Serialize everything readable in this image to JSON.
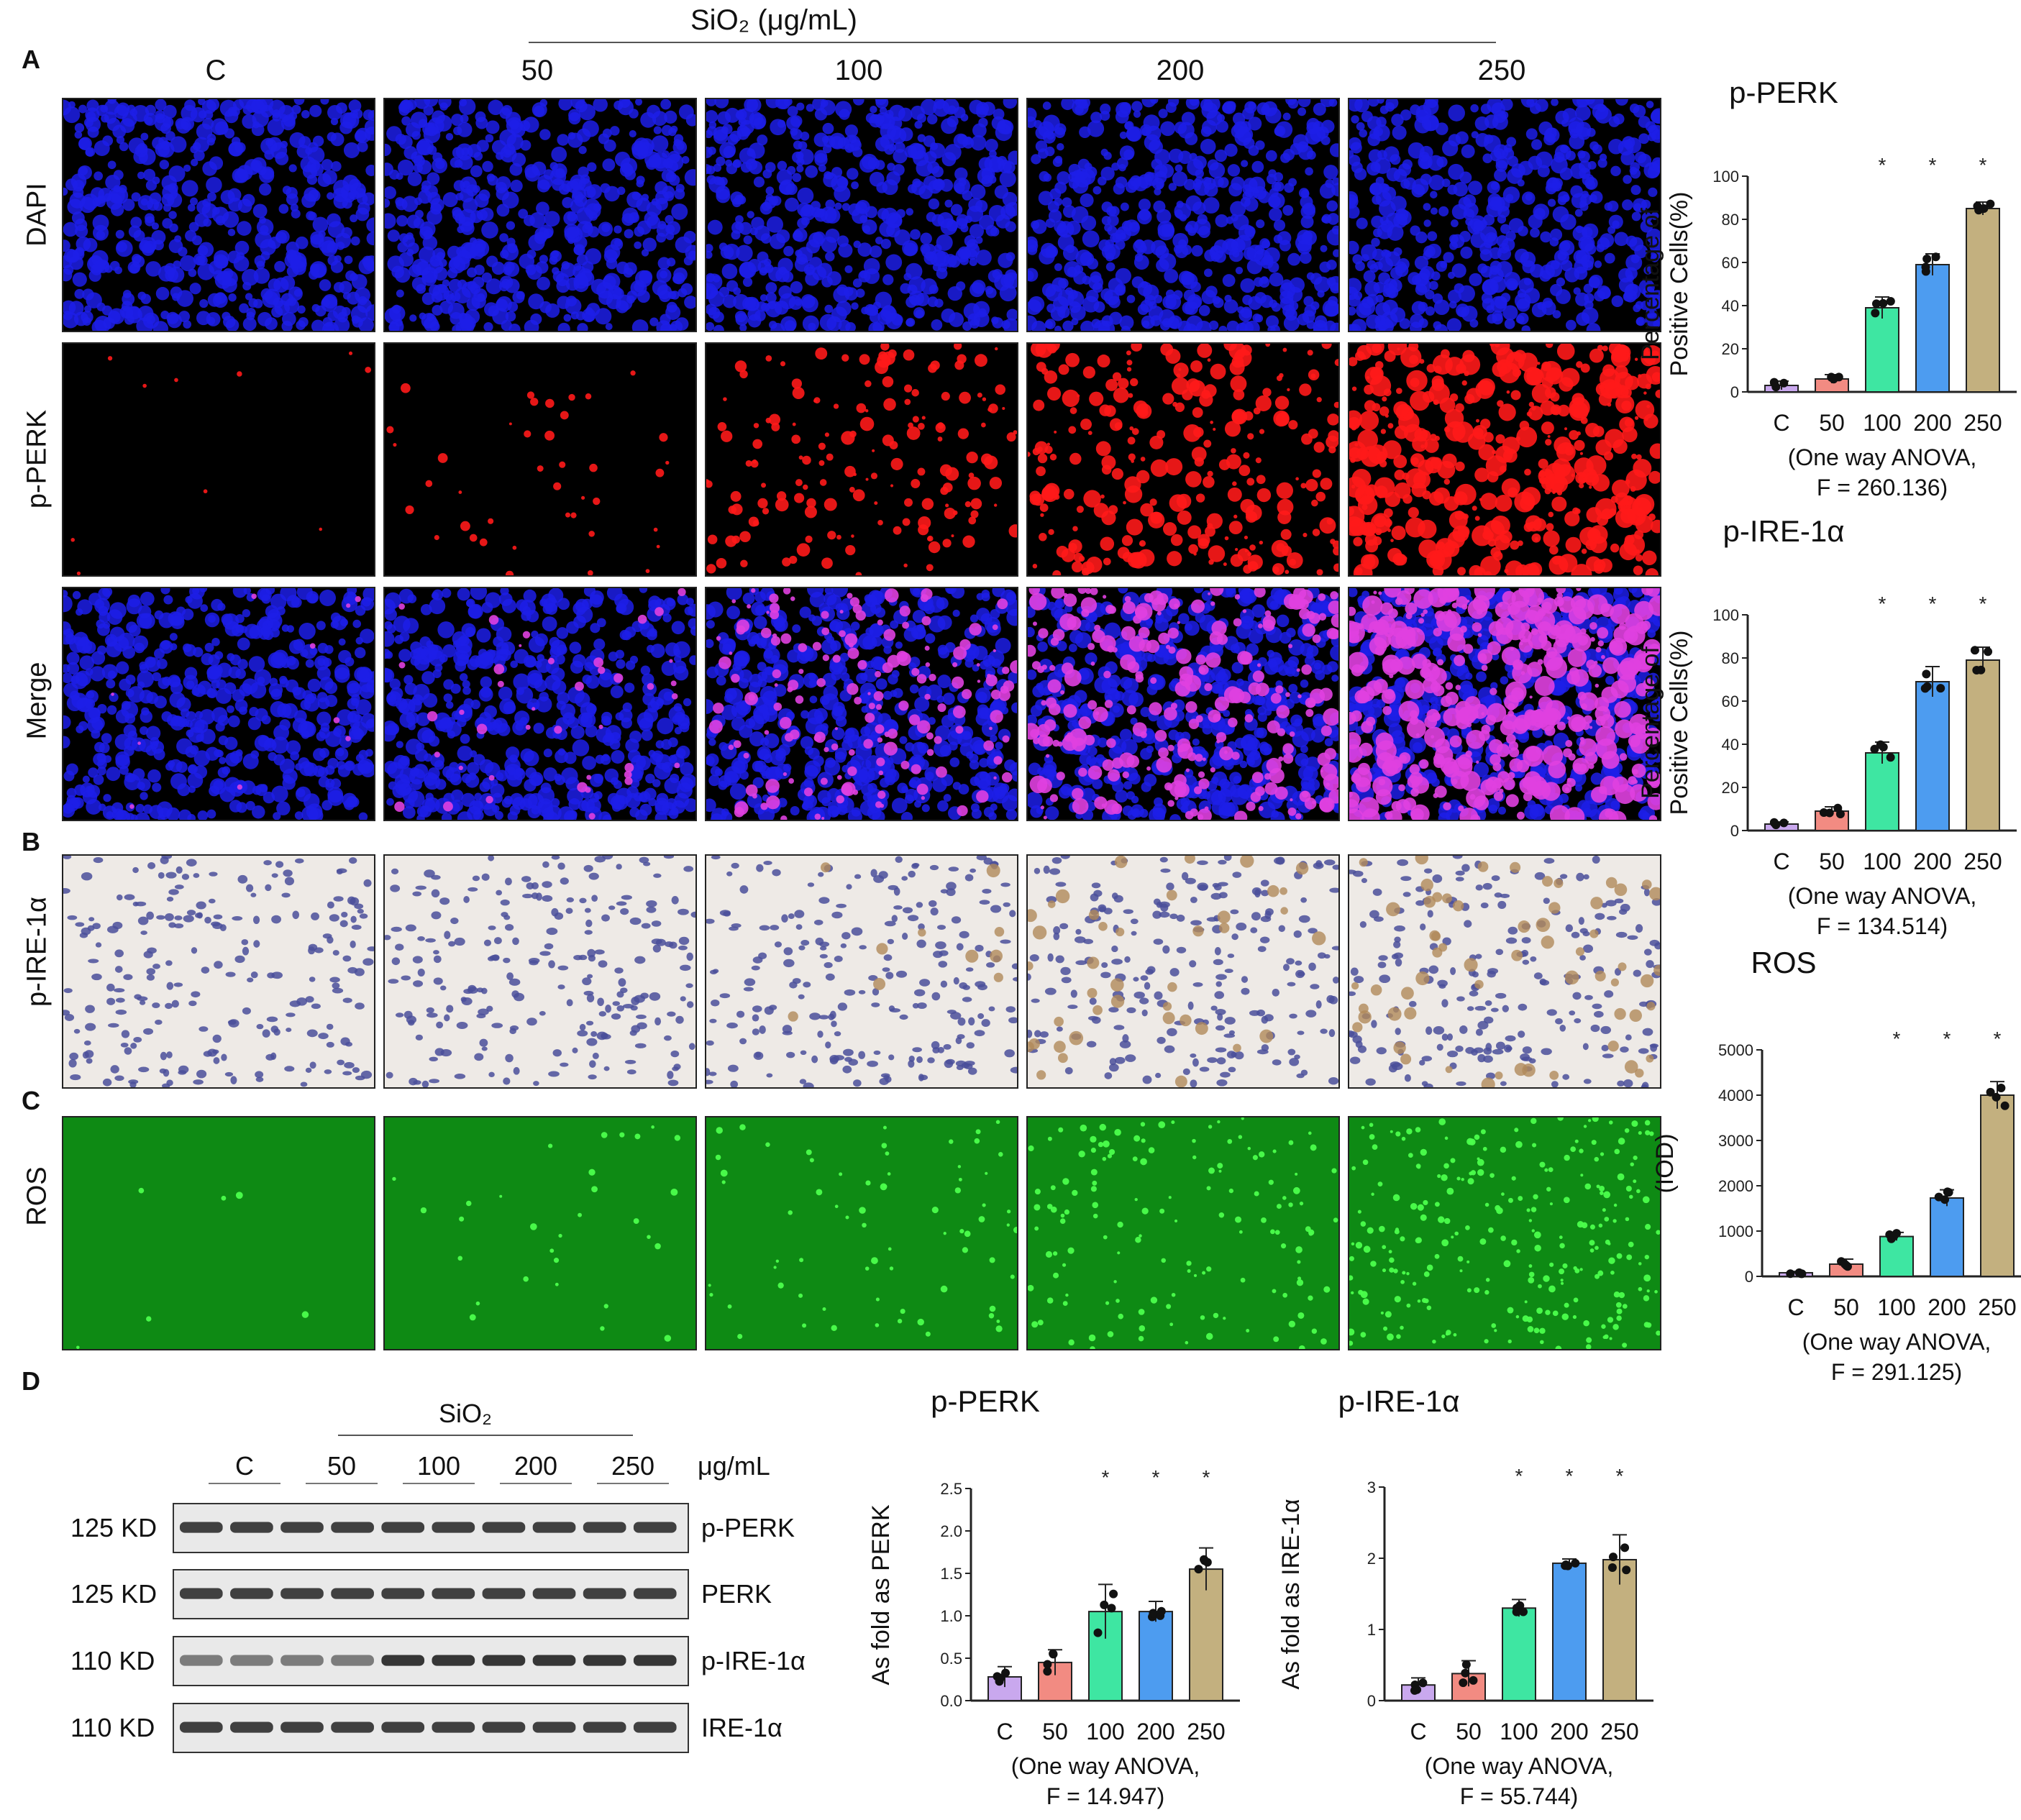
{
  "header": {
    "sio2_label": "SiO₂ (μg/mL)"
  },
  "panels": {
    "A": "A",
    "B": "B",
    "C": "C",
    "D": "D"
  },
  "columns": [
    "C",
    "50",
    "100",
    "200",
    "250"
  ],
  "rows": {
    "dapi": "DAPI",
    "pperk": "p-PERK",
    "merge": "Merge",
    "pire": "p-IRE-1α",
    "ros": "ROS"
  },
  "colors": {
    "dapi": "#1d1ee8",
    "pperk": "#ff1a1a",
    "merge": "#e040e0",
    "ros_bg": "#0e8a14",
    "ros_cell": "#4cff4c",
    "ihc_bg": "#eeeae6",
    "ihc_cell": "#4a4f9a"
  },
  "western": {
    "sio2": "SiO₂",
    "groups": [
      "C",
      "50",
      "100",
      "200",
      "250"
    ],
    "unit": "μg/mL",
    "bands": [
      {
        "kd": "125 KD",
        "name": "p-PERK"
      },
      {
        "kd": "125 KD",
        "name": "PERK"
      },
      {
        "kd": "110 KD",
        "name": "p-IRE-1α"
      },
      {
        "kd": "110 KD",
        "name": "IRE-1α"
      }
    ]
  },
  "chart_data": [
    {
      "id": "c1",
      "type": "bar",
      "title": "p-PERK",
      "ylabel_lines": [
        "Percentage of",
        "Positive Cells(%)"
      ],
      "categories": [
        "C",
        "50",
        "100",
        "200",
        "250"
      ],
      "values": [
        3,
        6,
        39,
        59,
        85
      ],
      "errors": [
        2,
        2,
        5,
        5,
        3
      ],
      "ylim": [
        0,
        100
      ],
      "yticks": [
        "0",
        "20",
        "40",
        "60",
        "80",
        "100"
      ],
      "significant": [
        "",
        "",
        "*",
        "*",
        "*"
      ],
      "note_lines": [
        "(One way ANOVA,",
        "F = 260.136)"
      ]
    },
    {
      "id": "c2",
      "type": "bar",
      "title": "p-IRE-1α",
      "ylabel_lines": [
        "Percentage of",
        "Positive Cells(%)"
      ],
      "categories": [
        "C",
        "50",
        "100",
        "200",
        "250"
      ],
      "values": [
        3,
        9,
        36,
        69,
        79
      ],
      "errors": [
        1,
        2,
        5,
        7,
        6
      ],
      "ylim": [
        0,
        100
      ],
      "yticks": [
        "0",
        "20",
        "40",
        "60",
        "80",
        "100"
      ],
      "significant": [
        "",
        "",
        "*",
        "*",
        "*"
      ],
      "note_lines": [
        "(One way ANOVA,",
        "F = 134.514)"
      ]
    },
    {
      "id": "c3",
      "type": "bar",
      "title": "ROS",
      "ylabel_lines": [
        "(IOD)"
      ],
      "categories": [
        "C",
        "50",
        "100",
        "200",
        "250"
      ],
      "values": [
        80,
        270,
        880,
        1730,
        4000
      ],
      "errors": [
        30,
        110,
        90,
        180,
        300
      ],
      "ylim": [
        0,
        5000
      ],
      "yticks": [
        "0",
        "1000",
        "2000",
        "3000",
        "4000",
        "5000"
      ],
      "significant": [
        "",
        "",
        "*",
        "*",
        "*"
      ],
      "note_lines": [
        "(One way ANOVA,",
        "F = 291.125)"
      ]
    },
    {
      "id": "c4",
      "type": "bar",
      "title": "p-PERK",
      "ylabel_lines": [
        "As fold as PERK"
      ],
      "categories": [
        "C",
        "50",
        "100",
        "200",
        "250"
      ],
      "values": [
        0.28,
        0.45,
        1.05,
        1.05,
        1.55
      ],
      "errors": [
        0.12,
        0.15,
        0.32,
        0.12,
        0.25
      ],
      "ylim": [
        0,
        2.5
      ],
      "yticks": [
        "0.0",
        "0.5",
        "1.0",
        "1.5",
        "2.0",
        "2.5"
      ],
      "significant": [
        "",
        "",
        "*",
        "*",
        "*"
      ],
      "note_lines": [
        "(One way ANOVA,",
        "F = 14.947)"
      ]
    },
    {
      "id": "c5",
      "type": "bar",
      "title": "p-IRE-1α",
      "ylabel_lines": [
        "As fold as IRE-1α"
      ],
      "categories": [
        "C",
        "50",
        "100",
        "200",
        "250"
      ],
      "values": [
        0.22,
        0.38,
        1.3,
        1.93,
        1.98
      ],
      "errors": [
        0.1,
        0.18,
        0.12,
        0.06,
        0.35
      ],
      "ylim": [
        0,
        3
      ],
      "yticks": [
        "0",
        "1",
        "2",
        "3"
      ],
      "significant": [
        "",
        "",
        "*",
        "*",
        "*"
      ],
      "note_lines": [
        "(One way ANOVA,",
        "F = 55.744)"
      ]
    }
  ],
  "bar_colors": [
    "#c9a8ee",
    "#f28b82",
    "#3ee6a2",
    "#4d9cf0",
    "#c3b07f"
  ]
}
